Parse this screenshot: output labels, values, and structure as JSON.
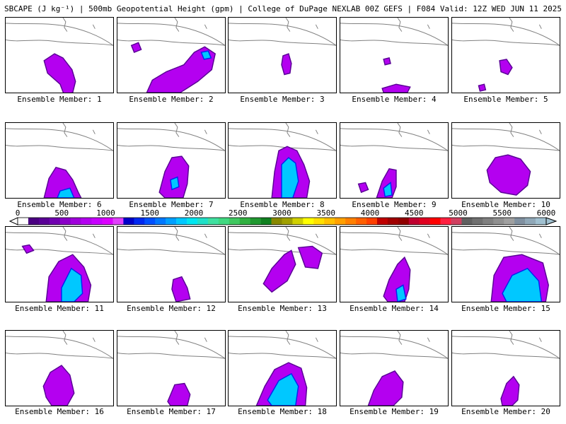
{
  "header": {
    "title": "SBCAPE (J kg⁻¹) | 500mb Geopotential Height (gpm) | College of DuPage NEXLAB 00Z GEFS | F084 Valid: 12Z WED JUN 11 2025"
  },
  "panels": [
    {
      "label": "Ensemble Member: 1",
      "blobs": [
        [
          [
            55,
            62
          ],
          [
            70,
            52
          ],
          [
            82,
            58
          ],
          [
            95,
            75
          ],
          [
            100,
            92
          ],
          [
            96,
            108
          ],
          [
            84,
            112
          ],
          [
            78,
            96
          ],
          [
            60,
            80
          ]
        ]
      ],
      "cores": []
    },
    {
      "label": "Ensemble Member: 2",
      "blobs": [
        [
          [
            42,
            108
          ],
          [
            50,
            90
          ],
          [
            70,
            78
          ],
          [
            95,
            68
          ],
          [
            110,
            50
          ],
          [
            125,
            42
          ],
          [
            140,
            52
          ],
          [
            135,
            75
          ],
          [
            115,
            92
          ],
          [
            90,
            108
          ]
        ],
        [
          [
            20,
            40
          ],
          [
            30,
            36
          ],
          [
            34,
            46
          ],
          [
            24,
            50
          ]
        ]
      ],
      "cores": [
        [
          [
            120,
            50
          ],
          [
            130,
            48
          ],
          [
            134,
            58
          ],
          [
            124,
            60
          ]
        ]
      ]
    },
    {
      "label": "Ensemble Member: 3",
      "blobs": [
        [
          [
            78,
            55
          ],
          [
            86,
            52
          ],
          [
            90,
            66
          ],
          [
            88,
            80
          ],
          [
            80,
            82
          ],
          [
            76,
            68
          ]
        ]
      ],
      "cores": []
    },
    {
      "label": "Ensemble Member: 4",
      "blobs": [
        [
          [
            60,
            102
          ],
          [
            80,
            96
          ],
          [
            100,
            100
          ],
          [
            96,
            108
          ],
          [
            62,
            108
          ]
        ],
        [
          [
            62,
            60
          ],
          [
            70,
            58
          ],
          [
            72,
            66
          ],
          [
            64,
            68
          ]
        ]
      ],
      "cores": []
    },
    {
      "label": "Ensemble Member: 5",
      "blobs": [
        [
          [
            68,
            62
          ],
          [
            78,
            60
          ],
          [
            86,
            72
          ],
          [
            80,
            82
          ],
          [
            70,
            78
          ]
        ],
        [
          [
            38,
            98
          ],
          [
            46,
            96
          ],
          [
            48,
            104
          ],
          [
            40,
            106
          ]
        ]
      ],
      "cores": []
    },
    {
      "label": "Ensemble Member: 6",
      "blobs": [
        [
          [
            55,
            108
          ],
          [
            62,
            80
          ],
          [
            72,
            64
          ],
          [
            86,
            68
          ],
          [
            96,
            82
          ],
          [
            104,
            100
          ],
          [
            108,
            108
          ]
        ]
      ],
      "cores": [
        [
          [
            78,
            98
          ],
          [
            92,
            94
          ],
          [
            98,
            108
          ],
          [
            74,
            108
          ]
        ]
      ]
    },
    {
      "label": "Ensemble Member: 7",
      "blobs": [
        [
          [
            60,
            100
          ],
          [
            68,
            70
          ],
          [
            78,
            50
          ],
          [
            92,
            48
          ],
          [
            102,
            62
          ],
          [
            100,
            88
          ],
          [
            94,
            108
          ],
          [
            68,
            108
          ]
        ]
      ],
      "cores": [
        [
          [
            76,
            82
          ],
          [
            86,
            78
          ],
          [
            88,
            92
          ],
          [
            78,
            96
          ]
        ]
      ]
    },
    {
      "label": "Ensemble Member: 8",
      "blobs": [
        [
          [
            62,
            108
          ],
          [
            66,
            70
          ],
          [
            72,
            40
          ],
          [
            84,
            34
          ],
          [
            98,
            40
          ],
          [
            108,
            60
          ],
          [
            116,
            84
          ],
          [
            112,
            108
          ]
        ]
      ],
      "cores": [
        [
          [
            76,
            60
          ],
          [
            86,
            50
          ],
          [
            96,
            58
          ],
          [
            100,
            84
          ],
          [
            92,
            108
          ],
          [
            76,
            108
          ]
        ]
      ]
    },
    {
      "label": "Ensemble Member: 9",
      "blobs": [
        [
          [
            52,
            108
          ],
          [
            60,
            84
          ],
          [
            70,
            66
          ],
          [
            80,
            68
          ],
          [
            80,
            92
          ],
          [
            74,
            108
          ]
        ],
        [
          [
            26,
            88
          ],
          [
            36,
            86
          ],
          [
            40,
            96
          ],
          [
            30,
            100
          ]
        ]
      ],
      "cores": [
        [
          [
            62,
            94
          ],
          [
            72,
            86
          ],
          [
            74,
            104
          ],
          [
            64,
            106
          ]
        ]
      ]
    },
    {
      "label": "Ensemble Member: 10",
      "blobs": [
        [
          [
            50,
            68
          ],
          [
            62,
            50
          ],
          [
            80,
            46
          ],
          [
            98,
            52
          ],
          [
            112,
            70
          ],
          [
            108,
            90
          ],
          [
            92,
            104
          ],
          [
            70,
            100
          ],
          [
            54,
            86
          ]
        ]
      ],
      "cores": []
    },
    {
      "label": "Ensemble Member: 11",
      "blobs": [
        [
          [
            58,
            108
          ],
          [
            62,
            72
          ],
          [
            76,
            50
          ],
          [
            96,
            40
          ],
          [
            112,
            58
          ],
          [
            122,
            84
          ],
          [
            118,
            108
          ]
        ],
        [
          [
            24,
            28
          ],
          [
            34,
            26
          ],
          [
            40,
            34
          ],
          [
            30,
            38
          ]
        ]
      ],
      "cores": [
        [
          [
            80,
            88
          ],
          [
            94,
            60
          ],
          [
            108,
            70
          ],
          [
            110,
            96
          ],
          [
            98,
            108
          ],
          [
            80,
            108
          ]
        ]
      ]
    },
    {
      "label": "Ensemble Member: 12",
      "blobs": [
        [
          [
            80,
            76
          ],
          [
            92,
            72
          ],
          [
            100,
            88
          ],
          [
            104,
            104
          ],
          [
            84,
            108
          ],
          [
            78,
            90
          ]
        ]
      ],
      "cores": []
    },
    {
      "label": "Ensemble Member: 13",
      "blobs": [
        [
          [
            50,
            82
          ],
          [
            62,
            60
          ],
          [
            80,
            40
          ],
          [
            90,
            34
          ],
          [
            96,
            54
          ],
          [
            84,
            78
          ],
          [
            62,
            94
          ]
        ],
        [
          [
            100,
            30
          ],
          [
            120,
            28
          ],
          [
            134,
            38
          ],
          [
            128,
            60
          ],
          [
            110,
            58
          ]
        ]
      ],
      "cores": []
    },
    {
      "label": "Ensemble Member: 14",
      "blobs": [
        [
          [
            62,
            100
          ],
          [
            70,
            76
          ],
          [
            82,
            54
          ],
          [
            92,
            44
          ],
          [
            100,
            62
          ],
          [
            98,
            90
          ],
          [
            92,
            108
          ],
          [
            68,
            108
          ]
        ]
      ],
      "cores": [
        [
          [
            80,
            90
          ],
          [
            90,
            84
          ],
          [
            94,
            104
          ],
          [
            82,
            108
          ]
        ]
      ]
    },
    {
      "label": "Ensemble Member: 15",
      "blobs": [
        [
          [
            56,
            108
          ],
          [
            60,
            70
          ],
          [
            74,
            44
          ],
          [
            100,
            40
          ],
          [
            130,
            52
          ],
          [
            138,
            84
          ],
          [
            134,
            108
          ]
        ]
      ],
      "cores": [
        [
          [
            72,
            96
          ],
          [
            86,
            70
          ],
          [
            108,
            60
          ],
          [
            124,
            78
          ],
          [
            128,
            108
          ],
          [
            78,
            108
          ]
        ]
      ]
    },
    {
      "label": "Ensemble Member: 16",
      "blobs": [
        [
          [
            54,
            80
          ],
          [
            64,
            60
          ],
          [
            80,
            50
          ],
          [
            92,
            64
          ],
          [
            98,
            90
          ],
          [
            88,
            108
          ],
          [
            66,
            108
          ],
          [
            58,
            96
          ]
        ]
      ],
      "cores": []
    },
    {
      "label": "Ensemble Member: 17",
      "blobs": [
        [
          [
            72,
            102
          ],
          [
            82,
            78
          ],
          [
            96,
            76
          ],
          [
            104,
            92
          ],
          [
            100,
            108
          ],
          [
            76,
            108
          ]
        ]
      ],
      "cores": []
    },
    {
      "label": "Ensemble Member: 18",
      "blobs": [
        [
          [
            40,
            108
          ],
          [
            52,
            80
          ],
          [
            66,
            56
          ],
          [
            86,
            46
          ],
          [
            104,
            54
          ],
          [
            112,
            82
          ],
          [
            110,
            108
          ]
        ]
      ],
      "cores": [
        [
          [
            56,
            100
          ],
          [
            72,
            72
          ],
          [
            90,
            62
          ],
          [
            100,
            80
          ],
          [
            96,
            108
          ],
          [
            62,
            108
          ]
        ]
      ]
    },
    {
      "label": "Ensemble Member: 19",
      "blobs": [
        [
          [
            40,
            108
          ],
          [
            48,
            86
          ],
          [
            60,
            66
          ],
          [
            78,
            58
          ],
          [
            90,
            74
          ],
          [
            88,
            96
          ],
          [
            76,
            108
          ]
        ]
      ],
      "cores": []
    },
    {
      "label": "Ensemble Member: 20",
      "blobs": [
        [
          [
            70,
            98
          ],
          [
            78,
            76
          ],
          [
            88,
            66
          ],
          [
            96,
            78
          ],
          [
            94,
            100
          ],
          [
            86,
            108
          ],
          [
            72,
            108
          ]
        ]
      ],
      "cores": []
    }
  ],
  "colorbar": {
    "labels": [
      "0",
      "500",
      "1000",
      "1500",
      "2000",
      "2500",
      "3000",
      "3500",
      "4000",
      "4500",
      "5000",
      "5500",
      "6000"
    ],
    "colors": [
      "#ffffff",
      "#4b0082",
      "#5a0096",
      "#7000b0",
      "#8a00c8",
      "#a000dc",
      "#b400f0",
      "#c800ff",
      "#dc00ff",
      "#e040fb",
      "#0000c8",
      "#0028f0",
      "#0050ff",
      "#0078ff",
      "#00a0ff",
      "#00c8ff",
      "#00e6f0",
      "#20e0c8",
      "#40e0a0",
      "#40d880",
      "#40c860",
      "#30b040",
      "#209830",
      "#108020",
      "#888800",
      "#a0a000",
      "#d0d000",
      "#ffff00",
      "#ffe000",
      "#ffc000",
      "#ffa000",
      "#ff8000",
      "#ff6000",
      "#ff4000",
      "#c00000",
      "#a00000",
      "#900000",
      "#c00030",
      "#e00020",
      "#ff0000",
      "#ff2040",
      "#d04060",
      "#606060",
      "#707070",
      "#808080",
      "#909090",
      "#a0a0a0",
      "#8090a0",
      "#90a8b8",
      "#a0c0d0"
    ]
  },
  "style": {
    "magenta": "#b400f0",
    "purple": "#5a0096",
    "blue": "#0028f0",
    "cyan": "#00c8ff",
    "green": "#40e0a0",
    "coast": "#808080"
  }
}
